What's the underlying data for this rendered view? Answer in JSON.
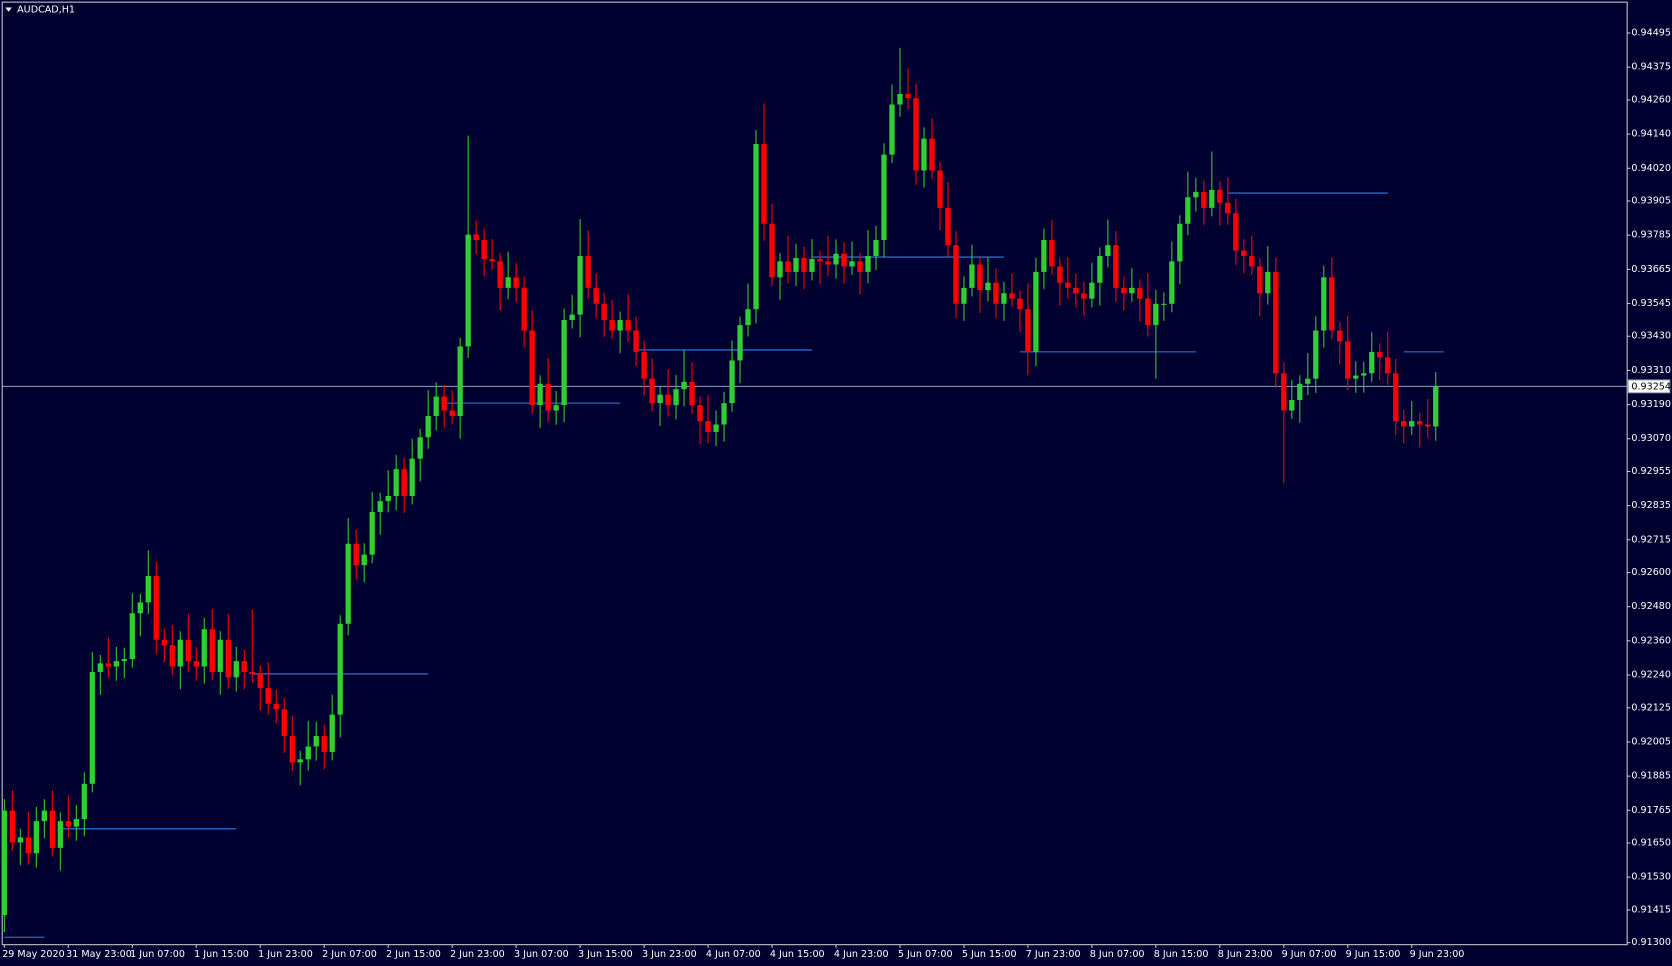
{
  "chart_data": {
    "type": "candlestick",
    "title": "AUDCAD,H1",
    "categories": [
      "29 May 2020",
      null,
      null,
      null,
      null,
      null,
      null,
      null,
      "31 May 23:00",
      null,
      null,
      null,
      null,
      null,
      null,
      null,
      "1 Jun 07:00",
      null,
      null,
      null,
      null,
      null,
      null,
      null,
      "1 Jun 15:00",
      null,
      null,
      null,
      null,
      null,
      null,
      null,
      "1 Jun 23:00",
      null,
      null,
      null,
      null,
      null,
      null,
      null,
      "2 Jun 07:00",
      null,
      null,
      null,
      null,
      null,
      null,
      null,
      "2 Jun 15:00",
      null,
      null,
      null,
      null,
      null,
      null,
      null,
      "2 Jun 23:00",
      null,
      null,
      null,
      null,
      null,
      null,
      null,
      "3 Jun 07:00",
      null,
      null,
      null,
      null,
      null,
      null,
      null,
      "3 Jun 15:00",
      null,
      null,
      null,
      null,
      null,
      null,
      null,
      "3 Jun 23:00",
      null,
      null,
      null,
      null,
      null,
      null,
      null,
      "4 Jun 07:00",
      null,
      null,
      null,
      null,
      null,
      null,
      null,
      "4 Jun 15:00",
      null,
      null,
      null,
      null,
      null,
      null,
      null,
      "4 Jun 23:00",
      null,
      null,
      null,
      null,
      null,
      null,
      null,
      "5 Jun 07:00",
      null,
      null,
      null,
      null,
      null,
      null,
      null,
      "5 Jun 15:00",
      null,
      null,
      null,
      null,
      null,
      null,
      null,
      "7 Jun 23:00",
      null,
      null,
      null,
      null,
      null,
      null,
      null,
      "8 Jun 07:00",
      null,
      null,
      null,
      null,
      null,
      null,
      null,
      "8 Jun 15:00",
      null,
      null,
      null,
      null,
      null,
      null,
      null,
      "8 Jun 23:00",
      null,
      null,
      null,
      null,
      null,
      null,
      null,
      "9 Jun 07:00",
      null,
      null,
      null,
      null,
      null,
      null,
      null,
      "9 Jun 15:00",
      null,
      null,
      null,
      null,
      null,
      null,
      null,
      "9 Jun 23:00",
      null,
      null,
      null
    ],
    "open": [
      0.91397,
      0.91764,
      0.91652,
      0.9167,
      0.91614,
      0.91727,
      0.91764,
      0.91633,
      0.91727,
      0.91708,
      0.91734,
      0.91858,
      0.92251,
      0.92281,
      0.9227,
      0.92289,
      0.92296,
      0.92457,
      0.92495,
      0.92588,
      0.92364,
      0.92345,
      0.9227,
      0.92364,
      0.92289,
      0.9227,
      0.92401,
      0.92251,
      0.92364,
      0.92232,
      0.92289,
      0.92251,
      0.92244,
      0.92195,
      0.92139,
      0.9212,
      0.92026,
      0.91933,
      0.91944,
      0.91989,
      0.92026,
      0.9197,
      0.92101,
      0.9242,
      0.92701,
      0.92626,
      0.92663,
      0.92813,
      0.92851,
      0.92869,
      0.92963,
      0.92869,
      0.93,
      0.93075,
      0.9315,
      0.93218,
      0.93169,
      0.9315,
      0.93394,
      0.93787,
      0.93768,
      0.93701,
      0.93693,
      0.936,
      0.93637,
      0.936,
      0.9345,
      0.93188,
      0.93263,
      0.93169,
      0.93188,
      0.93487,
      0.93506,
      0.93712,
      0.936,
      0.93544,
      0.93487,
      0.9345,
      0.93487,
      0.9345,
      0.93375,
      0.93281,
      0.93195,
      0.93225,
      0.93188,
      0.93244,
      0.9327,
      0.93188,
      0.93132,
      0.93094,
      0.9312,
      0.93195,
      0.93345,
      0.93469,
      0.93525,
      0.94105,
      0.93825,
      0.93637,
      0.93693,
      0.93656,
      0.93705,
      0.93656,
      0.93701,
      0.93693,
      0.93682,
      0.9372,
      0.93675,
      0.93693,
      0.93656,
      0.93712,
      0.93768,
      0.94068,
      0.94244,
      0.94281,
      0.94266,
      0.94012,
      0.94124,
      0.94012,
      0.93881,
      0.9375,
      0.93544,
      0.936,
      0.93682,
      0.93592,
      0.93618,
      0.93544,
      0.93581,
      0.93562,
      0.93525,
      0.93375,
      0.93656,
      0.93768,
      0.93675,
      0.93618,
      0.936,
      0.93581,
      0.93562,
      0.93618,
      0.93712,
      0.9375,
      0.936,
      0.93581,
      0.936,
      0.93562,
      0.93469,
      0.93544,
      0.93544,
      0.93693,
      0.93825,
      0.93918,
      0.93937,
      0.93881,
      0.93944,
      0.93899,
      0.93862,
      0.93731,
      0.93712,
      0.93675,
      0.93581,
      0.93656,
      0.933,
      0.93169,
      0.93206,
      0.93263,
      0.93281,
      0.9345,
      0.93637,
      0.9345,
      0.93412,
      0.93281,
      0.93292,
      0.933,
      0.93375,
      0.93356,
      0.933,
      0.93132,
      0.93113,
      0.93132,
      0.9312,
      0.93113
    ],
    "high": [
      0.91804,
      0.91834,
      0.917,
      0.9176,
      0.91777,
      0.91804,
      0.91834,
      0.91757,
      0.91817,
      0.91784,
      0.91898,
      0.92321,
      0.92311,
      0.92371,
      0.92339,
      0.92336,
      0.92527,
      0.92525,
      0.92678,
      0.92638,
      0.92404,
      0.92415,
      0.92394,
      0.92454,
      0.92339,
      0.92441,
      0.92471,
      0.92394,
      0.92454,
      0.92339,
      0.92329,
      0.9247,
      0.92274,
      0.92285,
      0.92189,
      0.9216,
      0.92096,
      0.91974,
      0.92079,
      0.92076,
      0.92066,
      0.92171,
      0.9245,
      0.92791,
      0.92751,
      0.92703,
      0.92883,
      0.92881,
      0.92959,
      0.93013,
      0.93003,
      0.9307,
      0.93105,
      0.9324,
      0.93268,
      0.93258,
      0.93239,
      0.93424,
      0.94135,
      0.93837,
      0.93808,
      0.93771,
      0.93723,
      0.93727,
      0.93687,
      0.9364,
      0.9352,
      0.93293,
      0.93353,
      0.93238,
      0.93527,
      0.93576,
      0.93842,
      0.93802,
      0.9365,
      0.93584,
      0.93557,
      0.93517,
      0.93577,
      0.935,
      0.93415,
      0.93351,
      0.93255,
      0.93315,
      0.93294,
      0.9338,
      0.9334,
      0.93218,
      0.93222,
      0.9317,
      0.93235,
      0.93415,
      0.93499,
      0.93615,
      0.94155,
      0.94248,
      0.93895,
      0.93723,
      0.93783,
      0.93755,
      0.93745,
      0.93771,
      0.93731,
      0.93783,
      0.9377,
      0.9376,
      0.93763,
      0.93723,
      0.93802,
      0.93818,
      0.94108,
      0.94314,
      0.94443,
      0.94371,
      0.94316,
      0.94164,
      0.94194,
      0.94042,
      0.93971,
      0.938,
      0.9364,
      0.93752,
      0.93712,
      0.93708,
      0.93668,
      0.93621,
      0.93651,
      0.93592,
      0.93615,
      0.93706,
      0.93808,
      0.93838,
      0.93705,
      0.93708,
      0.9365,
      0.93621,
      0.93688,
      0.93742,
      0.9384,
      0.938,
      0.9364,
      0.9367,
      0.9363,
      0.93652,
      0.93594,
      0.93584,
      0.93763,
      0.93855,
      0.94008,
      0.93987,
      0.93977,
      0.94079,
      0.93974,
      0.93989,
      0.93912,
      0.93771,
      0.93782,
      0.93705,
      0.93746,
      0.93706,
      0.9334,
      0.93276,
      0.93293,
      0.93371,
      0.935,
      0.93677,
      0.93707,
      0.9348,
      0.93502,
      0.93342,
      0.9334,
      0.93445,
      0.93405,
      0.93446,
      0.9335,
      0.93172,
      0.93202,
      0.93162,
      0.9321,
      0.93304
    ],
    "low": [
      0.91337,
      0.91622,
      0.91572,
      0.91574,
      0.91564,
      0.91667,
      0.91603,
      0.91553,
      0.91668,
      0.91658,
      0.91674,
      0.91828,
      0.92171,
      0.9223,
      0.9222,
      0.92229,
      0.92266,
      0.92377,
      0.92455,
      0.92314,
      0.92285,
      0.9224,
      0.9219,
      0.92249,
      0.9222,
      0.9221,
      0.92221,
      0.92171,
      0.92192,
      0.92182,
      0.92191,
      0.92214,
      0.92115,
      0.92099,
      0.9207,
      0.91966,
      0.91903,
      0.91853,
      0.91904,
      0.91939,
      0.9191,
      0.9194,
      0.92021,
      0.9238,
      0.92576,
      0.92566,
      0.92633,
      0.92733,
      0.92811,
      0.92819,
      0.92809,
      0.92839,
      0.9292,
      0.93035,
      0.931,
      0.93109,
      0.9312,
      0.9307,
      0.93354,
      0.93718,
      0.93641,
      0.93663,
      0.9352,
      0.9356,
      0.9355,
      0.9339,
      0.93158,
      0.93108,
      0.93129,
      0.93119,
      0.93128,
      0.93457,
      0.93426,
      0.9356,
      0.93494,
      0.93427,
      0.9342,
      0.9337,
      0.9341,
      0.93325,
      0.93221,
      0.93165,
      0.93115,
      0.93148,
      0.93138,
      0.93184,
      0.93158,
      0.93052,
      0.93054,
      0.93044,
      0.9306,
      0.93165,
      0.93265,
      0.93429,
      0.93475,
      0.93765,
      0.93607,
      0.93557,
      0.93616,
      0.93606,
      0.93596,
      0.93626,
      0.93613,
      0.93642,
      0.93632,
      0.93615,
      0.93645,
      0.93576,
      0.93616,
      0.93662,
      0.93708,
      0.94038,
      0.94201,
      0.94226,
      0.93962,
      0.93952,
      0.93982,
      0.93801,
      0.9371,
      0.93494,
      0.93484,
      0.9357,
      0.93512,
      0.93552,
      0.93494,
      0.93484,
      0.93532,
      0.93445,
      0.93293,
      0.93325,
      0.93596,
      0.93645,
      0.93538,
      0.9356,
      0.93531,
      0.93502,
      0.93532,
      0.93538,
      0.93672,
      0.9355,
      0.93521,
      0.93551,
      0.93482,
      0.93429,
      0.93281,
      0.93484,
      0.93514,
      0.93613,
      0.93785,
      0.93868,
      0.93821,
      0.93851,
      0.93819,
      0.93822,
      0.93681,
      0.93652,
      0.93645,
      0.93501,
      0.93541,
      0.9325,
      0.92914,
      0.93139,
      0.93126,
      0.93223,
      0.93231,
      0.9339,
      0.9342,
      0.93332,
      0.93241,
      0.93231,
      0.93232,
      0.9327,
      0.93276,
      0.9326,
      0.93082,
      0.93053,
      0.93083,
      0.9304,
      0.93073,
      0.93063
    ],
    "close": [
      0.91764,
      0.91652,
      0.9167,
      0.91614,
      0.91727,
      0.91764,
      0.91633,
      0.91727,
      0.91708,
      0.91734,
      0.91858,
      0.92251,
      0.92281,
      0.9227,
      0.92289,
      0.92296,
      0.92457,
      0.92495,
      0.92588,
      0.92364,
      0.92345,
      0.9227,
      0.92364,
      0.92289,
      0.9227,
      0.92401,
      0.92251,
      0.92364,
      0.92232,
      0.92289,
      0.92251,
      0.92244,
      0.92195,
      0.92139,
      0.9212,
      0.92026,
      0.91933,
      0.91944,
      0.91989,
      0.92026,
      0.9197,
      0.92101,
      0.9242,
      0.92701,
      0.92626,
      0.92663,
      0.92813,
      0.92851,
      0.92869,
      0.92963,
      0.92869,
      0.93,
      0.93075,
      0.9315,
      0.93218,
      0.93169,
      0.9315,
      0.93394,
      0.93787,
      0.93768,
      0.93701,
      0.93693,
      0.936,
      0.93637,
      0.936,
      0.9345,
      0.93188,
      0.93263,
      0.93169,
      0.93188,
      0.93487,
      0.93506,
      0.93712,
      0.936,
      0.93544,
      0.93487,
      0.9345,
      0.93487,
      0.9345,
      0.93375,
      0.93281,
      0.93195,
      0.93225,
      0.93188,
      0.93244,
      0.9327,
      0.93188,
      0.93132,
      0.93094,
      0.9312,
      0.93195,
      0.93345,
      0.93469,
      0.93525,
      0.94105,
      0.93825,
      0.93637,
      0.93693,
      0.93656,
      0.93705,
      0.93656,
      0.93701,
      0.93693,
      0.93682,
      0.9372,
      0.93675,
      0.93693,
      0.93656,
      0.93712,
      0.93768,
      0.94068,
      0.94244,
      0.94281,
      0.94266,
      0.94012,
      0.94124,
      0.94012,
      0.93881,
      0.9375,
      0.93544,
      0.936,
      0.93682,
      0.93592,
      0.93618,
      0.93544,
      0.93581,
      0.93562,
      0.93525,
      0.93375,
      0.93656,
      0.93768,
      0.93675,
      0.93618,
      0.936,
      0.93581,
      0.93562,
      0.93618,
      0.93712,
      0.9375,
      0.936,
      0.93581,
      0.936,
      0.93562,
      0.93469,
      0.93544,
      0.93544,
      0.93693,
      0.93825,
      0.93918,
      0.93937,
      0.93881,
      0.93944,
      0.93899,
      0.93862,
      0.93731,
      0.93712,
      0.93675,
      0.93581,
      0.93656,
      0.933,
      0.93169,
      0.93206,
      0.93263,
      0.93281,
      0.9345,
      0.93637,
      0.9345,
      0.93412,
      0.93281,
      0.93292,
      0.933,
      0.93375,
      0.93356,
      0.933,
      0.93132,
      0.93113,
      0.93132,
      0.9312,
      0.93113,
      0.93254
    ],
    "colors": {
      "up": "#32cd32",
      "down": "#ff0000"
    },
    "ylim": [
      0.91293,
      0.94596
    ],
    "yticks": [
      0.94495,
      0.94375,
      {
        "value": 0.9426,
        "label": "0.94260"
      },
      {
        "value": 0.9414,
        "label": "0.94140"
      },
      {
        "value": 0.9402,
        "label": "0.94020"
      },
      0.93905,
      0.93785,
      0.93665,
      0.93545,
      {
        "value": 0.9343,
        "label": "0.93430"
      },
      {
        "value": 0.9331,
        "label": "0.93310"
      },
      {
        "value": 0.9319,
        "label": "0.93190"
      },
      {
        "value": 0.9307,
        "label": "0.93070"
      },
      0.92955,
      0.92835,
      0.92715,
      {
        "value": 0.926,
        "label": "0.92600"
      },
      {
        "value": 0.9248,
        "label": "0.92480"
      },
      {
        "value": 0.9236,
        "label": "0.92360"
      },
      {
        "value": 0.9224,
        "label": "0.92240"
      },
      0.92125,
      0.92005,
      0.91885,
      0.91765,
      {
        "value": 0.9165,
        "label": "0.91650"
      },
      {
        "value": 0.9153,
        "label": "0.91530"
      },
      0.91415,
      {
        "value": 0.913,
        "label": "0.91300"
      }
    ],
    "current_price": 0.93254,
    "current_price_color": "#8fa3b8",
    "levels": [
      {
        "value": 0.917,
        "start": 7,
        "end": 29
      },
      {
        "value": 0.92244,
        "start": 31,
        "end": 53
      },
      {
        "value": 0.93195,
        "start": 55,
        "end": 77
      },
      {
        "value": 0.93382,
        "start": 79,
        "end": 101
      },
      {
        "value": 0.93708,
        "start": 101,
        "end": 125
      },
      {
        "value": 0.93375,
        "start": 127,
        "end": 149
      },
      {
        "value": 0.93933,
        "start": 153,
        "end": 173
      },
      {
        "value": 0.93375,
        "start": 175,
        "end": 180
      },
      {
        "value": 0.91319,
        "start": 0,
        "end": 5
      }
    ],
    "level_color": "#2f7fe8"
  }
}
